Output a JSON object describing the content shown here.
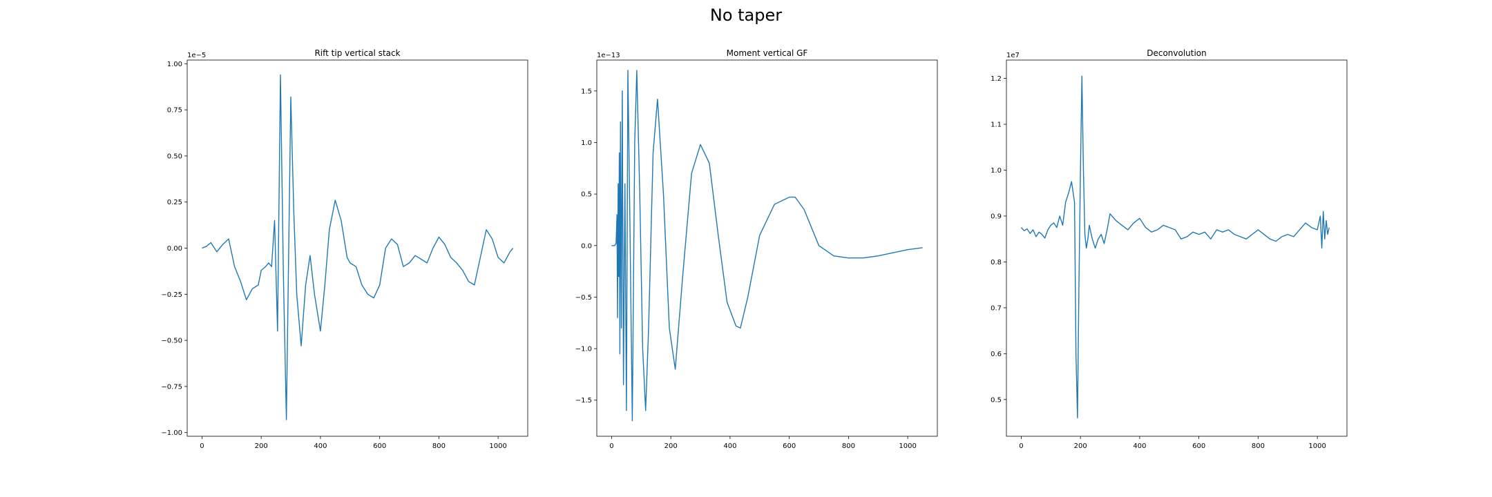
{
  "figure": {
    "suptitle": "No taper"
  },
  "colors": {
    "line": "#1f77b4",
    "axes": "#000000"
  },
  "chart_data": [
    {
      "type": "line",
      "title": "Rift tip vertical stack",
      "xlabel": "",
      "ylabel": "",
      "offset_label": "1e−5",
      "xlim": [
        -50,
        1100
      ],
      "ylim": [
        -1.02,
        1.02
      ],
      "xticks": [
        0,
        200,
        400,
        600,
        800,
        1000
      ],
      "yticks": [
        -1.0,
        -0.75,
        -0.5,
        -0.25,
        0.0,
        0.25,
        0.5,
        0.75,
        1.0
      ],
      "ytick_decimals": 2,
      "grid": false,
      "series": [
        {
          "x": [
            0,
            15,
            30,
            50,
            70,
            90,
            110,
            130,
            150,
            170,
            190,
            200,
            215,
            225,
            235,
            245,
            255,
            265,
            275,
            285,
            300,
            310,
            320,
            335,
            350,
            365,
            380,
            400,
            415,
            430,
            450,
            470,
            490,
            500,
            520,
            540,
            560,
            580,
            600,
            620,
            640,
            660,
            680,
            700,
            720,
            740,
            760,
            780,
            800,
            820,
            840,
            860,
            880,
            900,
            920,
            940,
            960,
            980,
            1000,
            1020,
            1040,
            1050
          ],
          "y": [
            0.0,
            0.01,
            0.03,
            -0.02,
            0.02,
            0.05,
            -0.1,
            -0.18,
            -0.28,
            -0.22,
            -0.2,
            -0.12,
            -0.1,
            -0.08,
            -0.1,
            0.15,
            -0.45,
            0.94,
            -0.15,
            -0.93,
            0.82,
            0.2,
            -0.25,
            -0.53,
            -0.2,
            -0.04,
            -0.25,
            -0.45,
            -0.2,
            0.1,
            0.26,
            0.15,
            -0.05,
            -0.08,
            -0.1,
            -0.2,
            -0.25,
            -0.27,
            -0.2,
            0.0,
            0.05,
            0.02,
            -0.1,
            -0.08,
            -0.04,
            -0.06,
            -0.08,
            0.0,
            0.06,
            0.02,
            -0.05,
            -0.08,
            -0.12,
            -0.18,
            -0.2,
            -0.05,
            0.1,
            0.05,
            -0.05,
            -0.08,
            -0.02,
            0.0
          ]
        }
      ]
    },
    {
      "type": "line",
      "title": "Moment vertical GF",
      "xlabel": "",
      "ylabel": "",
      "offset_label": "1e−13",
      "xlim": [
        -50,
        1100
      ],
      "ylim": [
        -1.85,
        1.8
      ],
      "xticks": [
        0,
        200,
        400,
        600,
        800,
        1000
      ],
      "yticks": [
        -1.5,
        -1.0,
        -0.5,
        0.0,
        0.5,
        1.0,
        1.5
      ],
      "ytick_decimals": 1,
      "grid": false,
      "series": [
        {
          "x": [
            0,
            10,
            15,
            18,
            20,
            22,
            24,
            26,
            28,
            30,
            33,
            36,
            40,
            45,
            50,
            55,
            62,
            70,
            78,
            85,
            95,
            105,
            115,
            125,
            140,
            155,
            175,
            195,
            215,
            240,
            270,
            300,
            330,
            360,
            390,
            420,
            435,
            460,
            500,
            550,
            600,
            620,
            650,
            700,
            750,
            800,
            850,
            900,
            950,
            1000,
            1050
          ],
          "y": [
            0.0,
            0.0,
            0.02,
            0.3,
            -0.7,
            0.6,
            -0.3,
            0.9,
            -1.05,
            1.2,
            -0.8,
            1.5,
            -1.35,
            0.6,
            -1.6,
            1.7,
            0.2,
            -1.7,
            1.0,
            1.7,
            0.5,
            -1.0,
            -1.6,
            -0.8,
            0.9,
            1.42,
            0.5,
            -0.8,
            -1.2,
            -0.3,
            0.7,
            0.98,
            0.8,
            0.1,
            -0.55,
            -0.78,
            -0.8,
            -0.5,
            0.1,
            0.4,
            0.47,
            0.47,
            0.35,
            0.0,
            -0.1,
            -0.12,
            -0.12,
            -0.1,
            -0.07,
            -0.04,
            -0.02
          ]
        }
      ]
    },
    {
      "type": "line",
      "title": "Deconvolution",
      "xlabel": "",
      "ylabel": "",
      "offset_label": "1e7",
      "xlim": [
        -50,
        1100
      ],
      "ylim": [
        0.42,
        1.24
      ],
      "xticks": [
        0,
        200,
        400,
        600,
        800,
        1000
      ],
      "yticks": [
        0.5,
        0.6,
        0.7,
        0.8,
        0.9,
        1.0,
        1.1,
        1.2
      ],
      "ytick_decimals": 1,
      "grid": false,
      "series": [
        {
          "x": [
            0,
            10,
            20,
            30,
            40,
            50,
            60,
            70,
            80,
            90,
            100,
            110,
            120,
            130,
            140,
            150,
            160,
            170,
            180,
            185,
            190,
            195,
            200,
            205,
            210,
            215,
            220,
            225,
            230,
            240,
            250,
            260,
            270,
            280,
            290,
            300,
            320,
            340,
            360,
            380,
            400,
            420,
            440,
            460,
            480,
            500,
            520,
            540,
            560,
            580,
            600,
            620,
            640,
            660,
            680,
            700,
            720,
            740,
            760,
            780,
            800,
            820,
            840,
            860,
            880,
            900,
            920,
            940,
            960,
            980,
            1000,
            1010,
            1015,
            1020,
            1025,
            1030,
            1035,
            1040
          ],
          "y": [
            0.875,
            0.868,
            0.872,
            0.862,
            0.87,
            0.855,
            0.865,
            0.86,
            0.852,
            0.87,
            0.88,
            0.885,
            0.875,
            0.9,
            0.88,
            0.93,
            0.95,
            0.975,
            0.93,
            0.6,
            0.46,
            0.75,
            1.0,
            1.205,
            1.0,
            0.86,
            0.83,
            0.85,
            0.88,
            0.85,
            0.83,
            0.85,
            0.86,
            0.84,
            0.87,
            0.905,
            0.89,
            0.88,
            0.87,
            0.885,
            0.895,
            0.875,
            0.865,
            0.87,
            0.88,
            0.875,
            0.87,
            0.85,
            0.855,
            0.865,
            0.86,
            0.865,
            0.85,
            0.87,
            0.865,
            0.87,
            0.86,
            0.855,
            0.85,
            0.86,
            0.87,
            0.86,
            0.85,
            0.845,
            0.855,
            0.86,
            0.855,
            0.87,
            0.885,
            0.875,
            0.87,
            0.9,
            0.83,
            0.91,
            0.85,
            0.89,
            0.86,
            0.875
          ]
        }
      ]
    }
  ]
}
